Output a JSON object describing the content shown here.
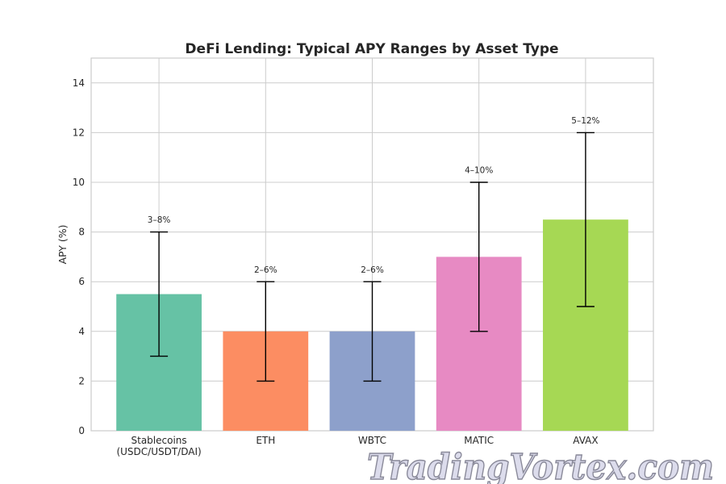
{
  "chart_data": {
    "type": "bar",
    "title": "DeFi Lending: Typical APY Ranges by Asset Type",
    "xlabel": "",
    "ylabel": "APY (%)",
    "ylim": [
      0,
      15
    ],
    "yticks": [
      0,
      2,
      4,
      6,
      8,
      10,
      12,
      14
    ],
    "grid": true,
    "categories": [
      "Stablecoins\n(USDC/USDT/DAI)",
      "ETH",
      "WBTC",
      "MATIC",
      "AVAX"
    ],
    "values": [
      5.5,
      4,
      4,
      7,
      8.5
    ],
    "error_low": [
      3,
      2,
      2,
      4,
      5
    ],
    "error_high": [
      8,
      6,
      6,
      10,
      12
    ],
    "data_labels": [
      "3–8%",
      "2–6%",
      "2–6%",
      "4–10%",
      "5–12%"
    ],
    "colors": [
      "#66c2a5",
      "#fc8d62",
      "#8da0cb",
      "#e78ac3",
      "#a6d854"
    ]
  },
  "watermark": "TradingVortex.com"
}
